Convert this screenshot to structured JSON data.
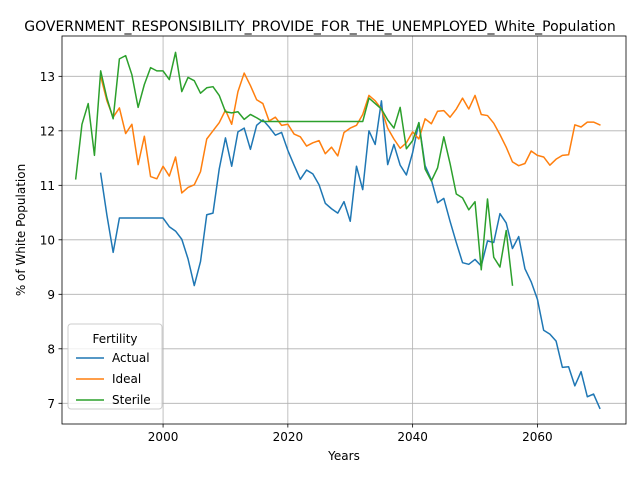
{
  "chart_data": {
    "type": "line",
    "title": "GOVERNMENT_RESPONSIBILITY_PROVIDE_FOR_THE_UNEMPLOYED_White_Population",
    "xlabel": "Years",
    "ylabel": "% of White Population",
    "xlim": [
      1983.8,
      2074.2
    ],
    "ylim": [
      6.62,
      13.74
    ],
    "xticks": [
      2000,
      2020,
      2040,
      2060
    ],
    "yticks": [
      7,
      8,
      9,
      10,
      11,
      12,
      13
    ],
    "grid": true,
    "legend": {
      "title": "Fertility",
      "placement": "lower-left"
    },
    "series": [
      {
        "name": "Actual",
        "color": "#1f77b4",
        "x": [
          1990,
          1991,
          1992,
          1993,
          1994,
          1995,
          1996,
          1997,
          1998,
          1999,
          2000,
          2001,
          2002,
          2003,
          2004,
          2005,
          2006,
          2007,
          2008,
          2009,
          2010,
          2011,
          2012,
          2013,
          2014,
          2015,
          2016,
          2017,
          2018,
          2019,
          2020,
          2021,
          2022,
          2023,
          2024,
          2025,
          2026,
          2027,
          2028,
          2029,
          2030,
          2031,
          2032,
          2033,
          2034,
          2035,
          2036,
          2037,
          2038,
          2039,
          2040,
          2041,
          2042,
          2043,
          2044,
          2045,
          2046,
          2047,
          2048,
          2049,
          2050,
          2051,
          2052,
          2053,
          2054,
          2055,
          2056,
          2057,
          2058,
          2059,
          2060,
          2061,
          2062,
          2063,
          2064,
          2065,
          2066,
          2067,
          2068,
          2069,
          2070
        ],
        "y": [
          11.22,
          10.45,
          9.77,
          10.4,
          10.4,
          10.4,
          10.4,
          10.4,
          10.4,
          10.4,
          10.4,
          10.24,
          10.16,
          10.01,
          9.65,
          9.16,
          9.6,
          10.46,
          10.49,
          11.3,
          11.87,
          11.35,
          11.98,
          12.05,
          11.66,
          12.1,
          12.2,
          12.07,
          11.92,
          11.97,
          11.64,
          11.37,
          11.11,
          11.28,
          11.21,
          11.01,
          10.67,
          10.57,
          10.49,
          10.7,
          10.34,
          11.35,
          10.92,
          12.0,
          11.75,
          12.55,
          11.38,
          11.75,
          11.37,
          11.19,
          11.6,
          12.15,
          11.36,
          11.1,
          10.68,
          10.76,
          10.34,
          9.95,
          9.58,
          9.55,
          9.64,
          9.52,
          9.98,
          9.95,
          10.48,
          10.31,
          9.84,
          10.06,
          9.47,
          9.23,
          8.91,
          8.34,
          8.27,
          8.14,
          7.66,
          7.67,
          7.32,
          7.58,
          7.12,
          7.17,
          6.91
        ]
      },
      {
        "name": "Ideal",
        "color": "#ff7f0e",
        "x": [
          1990,
          1991,
          1992,
          1993,
          1994,
          1995,
          1996,
          1997,
          1998,
          1999,
          2000,
          2001,
          2002,
          2003,
          2004,
          2005,
          2006,
          2007,
          2008,
          2009,
          2010,
          2011,
          2012,
          2013,
          2014,
          2015,
          2016,
          2017,
          2018,
          2019,
          2020,
          2021,
          2022,
          2023,
          2024,
          2025,
          2026,
          2027,
          2028,
          2029,
          2030,
          2031,
          2032,
          2033,
          2034,
          2035,
          2036,
          2037,
          2038,
          2039,
          2040,
          2041,
          2042,
          2043,
          2044,
          2045,
          2046,
          2047,
          2048,
          2049,
          2050,
          2051,
          2052,
          2053,
          2054,
          2055,
          2056,
          2057,
          2058,
          2059,
          2060,
          2061,
          2062,
          2063,
          2064,
          2065,
          2066,
          2067,
          2068,
          2069,
          2070
        ],
        "y": [
          13.0,
          12.55,
          12.25,
          12.42,
          11.95,
          12.12,
          11.38,
          11.9,
          11.16,
          11.12,
          11.35,
          11.17,
          11.52,
          10.86,
          10.96,
          11.01,
          11.25,
          11.85,
          12.0,
          12.15,
          12.38,
          12.12,
          12.72,
          13.06,
          12.83,
          12.57,
          12.5,
          12.18,
          12.25,
          12.1,
          12.12,
          11.94,
          11.89,
          11.72,
          11.78,
          11.82,
          11.58,
          11.7,
          11.54,
          11.97,
          12.05,
          12.1,
          12.3,
          12.65,
          12.55,
          12.4,
          12.05,
          11.85,
          11.68,
          11.78,
          11.98,
          11.85,
          12.22,
          12.13,
          12.36,
          12.37,
          12.25,
          12.4,
          12.6,
          12.4,
          12.65,
          12.3,
          12.28,
          12.14,
          11.93,
          11.7,
          11.43,
          11.36,
          11.4,
          11.63,
          11.55,
          11.52,
          11.37,
          11.48,
          11.55,
          11.56,
          12.11,
          12.07,
          12.16,
          12.16,
          12.11
        ]
      },
      {
        "name": "Sterile",
        "color": "#2ca02c",
        "x": [
          1986,
          1987,
          1988,
          1989,
          1990,
          1991,
          1992,
          1993,
          1994,
          1995,
          1996,
          1997,
          1998,
          1999,
          2000,
          2001,
          2002,
          2003,
          2004,
          2005,
          2006,
          2007,
          2008,
          2009,
          2010,
          2011,
          2012,
          2013,
          2014,
          2015,
          2016,
          2017,
          2018,
          2019,
          2020,
          2021,
          2022,
          2023,
          2024,
          2025,
          2026,
          2027,
          2028,
          2029,
          2030,
          2031,
          2032,
          2033,
          2034,
          2035,
          2036,
          2037,
          2038,
          2039,
          2040,
          2041,
          2042,
          2043,
          2044,
          2045,
          2046,
          2047,
          2048,
          2049,
          2050,
          2051,
          2052,
          2053,
          2054,
          2055,
          2056
        ],
        "y": [
          11.12,
          12.12,
          12.5,
          11.55,
          13.1,
          12.6,
          12.22,
          13.32,
          13.38,
          13.03,
          12.43,
          12.85,
          13.16,
          13.1,
          13.1,
          12.94,
          13.44,
          12.72,
          12.98,
          12.92,
          12.69,
          12.79,
          12.81,
          12.65,
          12.35,
          12.33,
          12.35,
          12.21,
          12.3,
          12.24,
          12.17,
          12.17,
          12.17,
          12.17,
          12.17,
          12.17,
          12.17,
          12.17,
          12.17,
          12.17,
          12.17,
          12.17,
          12.17,
          12.17,
          12.17,
          12.17,
          12.17,
          12.6,
          12.5,
          12.4,
          12.2,
          12.05,
          12.43,
          11.67,
          11.82,
          12.15,
          11.3,
          11.08,
          11.32,
          11.89,
          11.4,
          10.84,
          10.77,
          10.55,
          10.7,
          9.45,
          10.75,
          9.68,
          9.5,
          10.17,
          9.17
        ]
      }
    ]
  }
}
